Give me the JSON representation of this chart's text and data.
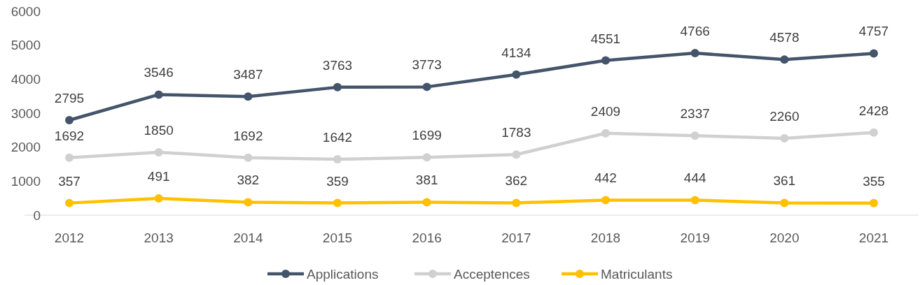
{
  "chart_data": {
    "type": "line",
    "categories": [
      "2012",
      "2013",
      "2014",
      "2015",
      "2016",
      "2017",
      "2018",
      "2019",
      "2020",
      "2021"
    ],
    "series": [
      {
        "name": "Applications",
        "color": "#44546a",
        "values": [
          2795,
          3546,
          3487,
          3763,
          3773,
          4134,
          4551,
          4766,
          4578,
          4757
        ]
      },
      {
        "name": "Acceptences",
        "color": "#d0d0d0",
        "values": [
          1692,
          1850,
          1692,
          1642,
          1699,
          1783,
          2409,
          2337,
          2260,
          2428
        ]
      },
      {
        "name": "Matriculants",
        "color": "#ffc000",
        "values": [
          357,
          491,
          382,
          359,
          381,
          362,
          442,
          444,
          361,
          355
        ]
      }
    ],
    "ylim": [
      0,
      6000
    ],
    "yticks": [
      0,
      1000,
      2000,
      3000,
      4000,
      5000,
      6000
    ],
    "grid": false,
    "legend": "bottom",
    "marker": "circle",
    "line_style": "solid",
    "data_labels": true
  }
}
